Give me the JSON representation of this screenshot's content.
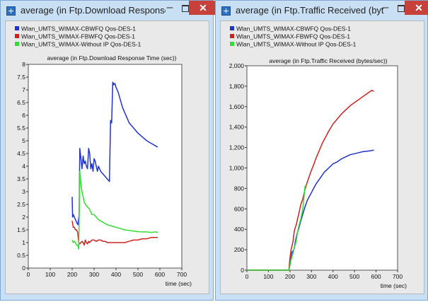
{
  "windows": [
    {
      "title": "average (in Ftp.Download Response Time (sec)) - Graph",
      "min_glyph": "–",
      "close_glyph": "✕"
    },
    {
      "title": "average (in Ftp.Traffic Received (bytes/sec))",
      "min_glyph": "–",
      "close_glyph": "✕"
    }
  ],
  "chart_data": [
    {
      "type": "line",
      "title": "average (in Ftp.Download Response Time (sec))",
      "xlabel": "time (sec)",
      "ylabel": "",
      "xlim": [
        0,
        700
      ],
      "ylim": [
        0,
        8
      ],
      "xticks": [
        "0",
        "100",
        "200",
        "300",
        "400",
        "500",
        "600",
        "700"
      ],
      "yticks": [
        "0",
        "0.5",
        "1",
        "1.5",
        "2",
        "2.5",
        "3",
        "3.5",
        "4",
        "4.5",
        "5",
        "5.5",
        "6",
        "6.5",
        "7",
        "7.5",
        "8"
      ],
      "legend_position": "top-left",
      "series": [
        {
          "name": "Wlan_UMTS_WIMAX-CBWFQ Qos-DES-1",
          "color": "#2233cc",
          "points": [
            [
              200,
              2.8
            ],
            [
              202,
              2.0
            ],
            [
              205,
              2.1
            ],
            [
              210,
              2.0
            ],
            [
              215,
              1.9
            ],
            [
              220,
              1.8
            ],
            [
              226,
              1.7
            ],
            [
              232,
              2.1
            ],
            [
              235,
              4.7
            ],
            [
              240,
              4.3
            ],
            [
              245,
              3.9
            ],
            [
              250,
              4.4
            ],
            [
              255,
              4.1
            ],
            [
              260,
              4.2
            ],
            [
              265,
              4.0
            ],
            [
              270,
              3.9
            ],
            [
              275,
              4.7
            ],
            [
              280,
              4.5
            ],
            [
              285,
              3.9
            ],
            [
              290,
              4.1
            ],
            [
              295,
              3.8
            ],
            [
              300,
              4.3
            ],
            [
              305,
              4.2
            ],
            [
              310,
              4.0
            ],
            [
              315,
              3.8
            ],
            [
              320,
              4.0
            ],
            [
              330,
              3.8
            ],
            [
              340,
              3.7
            ],
            [
              350,
              3.6
            ],
            [
              360,
              3.5
            ],
            [
              370,
              3.4
            ],
            [
              375,
              5.8
            ],
            [
              380,
              5.7
            ],
            [
              385,
              7.3
            ],
            [
              390,
              7.2
            ],
            [
              395,
              7.25
            ],
            [
              400,
              7.1
            ],
            [
              410,
              6.9
            ],
            [
              420,
              6.6
            ],
            [
              430,
              6.3
            ],
            [
              440,
              6.1
            ],
            [
              450,
              5.9
            ],
            [
              460,
              5.7
            ],
            [
              470,
              5.6
            ],
            [
              480,
              5.5
            ],
            [
              500,
              5.3
            ],
            [
              520,
              5.15
            ],
            [
              540,
              5.0
            ],
            [
              560,
              4.9
            ],
            [
              580,
              4.8
            ],
            [
              590,
              4.75
            ]
          ]
        },
        {
          "name": "Wlan_UMTS_WIMAX-FBWFQ Qos-DES-1",
          "color": "#cc2222",
          "points": [
            [
              200,
              1.85
            ],
            [
              205,
              1.6
            ],
            [
              210,
              1.6
            ],
            [
              215,
              1.5
            ],
            [
              220,
              1.5
            ],
            [
              225,
              1.4
            ],
            [
              230,
              1.0
            ],
            [
              235,
              0.95
            ],
            [
              240,
              1.0
            ],
            [
              245,
              1.05
            ],
            [
              250,
              1.0
            ],
            [
              255,
              0.9
            ],
            [
              260,
              1.1
            ],
            [
              265,
              1.0
            ],
            [
              270,
              0.95
            ],
            [
              275,
              1.05
            ],
            [
              280,
              1.0
            ],
            [
              285,
              1.05
            ],
            [
              290,
              1.1
            ],
            [
              300,
              1.1
            ],
            [
              310,
              1.05
            ],
            [
              320,
              1.1
            ],
            [
              330,
              1.1
            ],
            [
              340,
              1.05
            ],
            [
              350,
              1.05
            ],
            [
              360,
              1.0
            ],
            [
              380,
              1.0
            ],
            [
              400,
              1.0
            ],
            [
              420,
              1.0
            ],
            [
              440,
              1.0
            ],
            [
              460,
              1.05
            ],
            [
              480,
              1.1
            ],
            [
              500,
              1.1
            ],
            [
              520,
              1.15
            ],
            [
              540,
              1.15
            ],
            [
              560,
              1.2
            ],
            [
              580,
              1.2
            ],
            [
              590,
              1.2
            ]
          ]
        },
        {
          "name": "Wlan_UMTS_WIMAX-Without IP Qos-DES-1",
          "color": "#33dd33",
          "points": [
            [
              200,
              1.1
            ],
            [
              205,
              1.0
            ],
            [
              210,
              1.05
            ],
            [
              215,
              1.0
            ],
            [
              220,
              0.9
            ],
            [
              225,
              0.9
            ],
            [
              230,
              0.75
            ],
            [
              235,
              3.8
            ],
            [
              240,
              3.3
            ],
            [
              245,
              3.0
            ],
            [
              250,
              2.8
            ],
            [
              255,
              2.6
            ],
            [
              260,
              2.5
            ],
            [
              270,
              2.4
            ],
            [
              280,
              2.3
            ],
            [
              290,
              2.1
            ],
            [
              300,
              2.1
            ],
            [
              310,
              2.0
            ],
            [
              320,
              1.9
            ],
            [
              330,
              1.85
            ],
            [
              340,
              1.8
            ],
            [
              350,
              1.75
            ],
            [
              360,
              1.7
            ],
            [
              380,
              1.65
            ],
            [
              400,
              1.6
            ],
            [
              420,
              1.55
            ],
            [
              440,
              1.5
            ],
            [
              460,
              1.48
            ],
            [
              480,
              1.45
            ],
            [
              500,
              1.43
            ],
            [
              520,
              1.42
            ],
            [
              540,
              1.42
            ],
            [
              560,
              1.4
            ],
            [
              580,
              1.42
            ],
            [
              590,
              1.4
            ]
          ]
        }
      ]
    },
    {
      "type": "line",
      "title": "average (in Ftp.Traffic Received (bytes/sec))",
      "xlabel": "time (sec)",
      "ylabel": "",
      "xlim": [
        0,
        700
      ],
      "ylim": [
        0,
        2000
      ],
      "xticks": [
        "0",
        "100",
        "200",
        "300",
        "400",
        "500",
        "600",
        "700"
      ],
      "yticks": [
        "0",
        "200",
        "400",
        "600",
        "800",
        "1,000",
        "1,200",
        "1,400",
        "1,600",
        "1,800",
        "2,000"
      ],
      "legend_position": "top-left",
      "series": [
        {
          "name": "Wlan_UMTS_WIMAX-CBWFQ Qos-DES-1",
          "color": "#2233cc",
          "points": [
            [
              0,
              0
            ],
            [
              180,
              0
            ],
            [
              195,
              0
            ],
            [
              200,
              50
            ],
            [
              205,
              120
            ],
            [
              210,
              180
            ],
            [
              215,
              190
            ],
            [
              220,
              210
            ],
            [
              225,
              280
            ],
            [
              230,
              330
            ],
            [
              235,
              370
            ],
            [
              240,
              400
            ],
            [
              250,
              480
            ],
            [
              260,
              550
            ],
            [
              270,
              620
            ],
            [
              280,
              680
            ],
            [
              290,
              720
            ],
            [
              300,
              760
            ],
            [
              310,
              800
            ],
            [
              320,
              840
            ],
            [
              330,
              870
            ],
            [
              340,
              900
            ],
            [
              350,
              930
            ],
            [
              360,
              960
            ],
            [
              370,
              980
            ],
            [
              380,
              1000
            ],
            [
              400,
              1040
            ],
            [
              420,
              1060
            ],
            [
              440,
              1090
            ],
            [
              460,
              1110
            ],
            [
              480,
              1130
            ],
            [
              500,
              1140
            ],
            [
              520,
              1150
            ],
            [
              540,
              1160
            ],
            [
              560,
              1165
            ],
            [
              580,
              1170
            ],
            [
              590,
              1175
            ]
          ]
        },
        {
          "name": "Wlan_UMTS_WIMAX-FBWFQ Qos-DES-1",
          "color": "#cc2222",
          "points": [
            [
              0,
              0
            ],
            [
              180,
              0
            ],
            [
              195,
              0
            ],
            [
              200,
              120
            ],
            [
              205,
              200
            ],
            [
              210,
              240
            ],
            [
              215,
              290
            ],
            [
              220,
              380
            ],
            [
              225,
              420
            ],
            [
              230,
              450
            ],
            [
              235,
              500
            ],
            [
              240,
              540
            ],
            [
              250,
              640
            ],
            [
              260,
              700
            ],
            [
              270,
              790
            ],
            [
              280,
              860
            ],
            [
              290,
              920
            ],
            [
              300,
              980
            ],
            [
              310,
              1030
            ],
            [
              320,
              1090
            ],
            [
              330,
              1140
            ],
            [
              340,
              1190
            ],
            [
              350,
              1240
            ],
            [
              360,
              1280
            ],
            [
              370,
              1320
            ],
            [
              380,
              1360
            ],
            [
              400,
              1430
            ],
            [
              420,
              1480
            ],
            [
              440,
              1530
            ],
            [
              460,
              1570
            ],
            [
              480,
              1610
            ],
            [
              500,
              1640
            ],
            [
              520,
              1670
            ],
            [
              540,
              1700
            ],
            [
              560,
              1730
            ],
            [
              580,
              1760
            ],
            [
              590,
              1750
            ]
          ]
        },
        {
          "name": "Wlan_UMTS_WIMAX-Without IP Qos-DES-1",
          "color": "#33dd33",
          "points": [
            [
              0,
              0
            ],
            [
              180,
              0
            ],
            [
              195,
              0
            ],
            [
              200,
              50
            ],
            [
              205,
              100
            ],
            [
              210,
              140
            ],
            [
              215,
              170
            ],
            [
              220,
              220
            ],
            [
              225,
              250
            ],
            [
              230,
              300
            ],
            [
              235,
              370
            ],
            [
              240,
              420
            ],
            [
              250,
              500
            ],
            [
              260,
              600
            ],
            [
              270,
              820
            ],
            [
              275,
              830
            ]
          ]
        }
      ]
    }
  ]
}
